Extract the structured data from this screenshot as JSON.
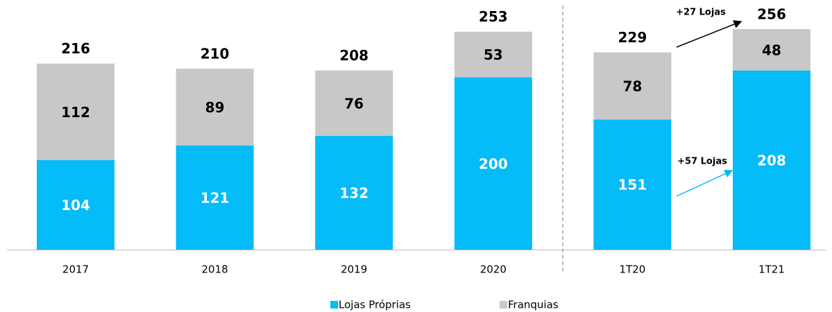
{
  "chart_data": {
    "type": "stacked_bar",
    "categories": [
      "2017",
      "2018",
      "2019",
      "2020",
      "1T20",
      "1T21"
    ],
    "series": [
      {
        "name": "Lojas Próprias",
        "color": "#05bbf8",
        "values": [
          104,
          121,
          132,
          200,
          151,
          208
        ]
      },
      {
        "name": "Franquias",
        "color": "#c8c8c8",
        "values": [
          112,
          89,
          76,
          53,
          78,
          48
        ]
      }
    ],
    "totals": [
      216,
      210,
      208,
      253,
      229,
      256
    ],
    "annotations": [
      "+27 Lojas",
      "+57 Lojas"
    ]
  }
}
